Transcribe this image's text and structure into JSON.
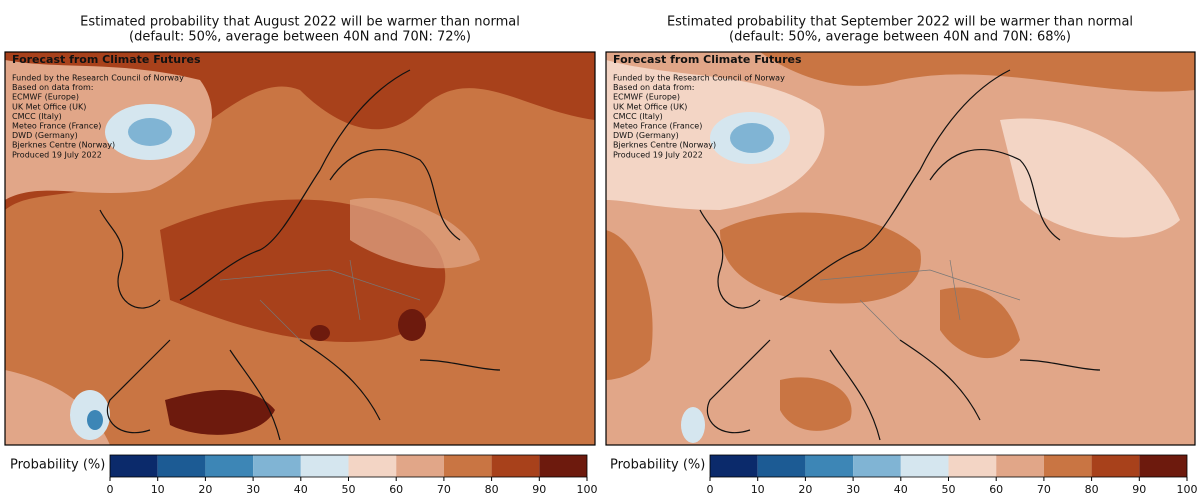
{
  "panels": [
    {
      "title": [
        "Estimated probability that August 2022 will be warmer than normal",
        "(default: 50%, average between 40N and 70N: 72%)"
      ],
      "overlay": {
        "heading": "Forecast from Climate Futures",
        "lines": [
          "Funded by the Research Council of Norway",
          "Based on data from:",
          "ECMWF (Europe)",
          "UK Met Office (UK)",
          "CMCC (Italy)",
          "Meteo France (France)",
          "DWD (Germany)",
          "Bjerknes Centre (Norway)",
          "Produced 19 July 2022"
        ]
      },
      "colorbar": {
        "label": "Probability (%)",
        "ticks": [
          0,
          10,
          20,
          30,
          40,
          50,
          60,
          70,
          80,
          90,
          100
        ],
        "colors": [
          "#0b2a6b",
          "#1c5b94",
          "#3d86b6",
          "#80b4d4",
          "#d5e6ef",
          "#f3d5c5",
          "#e1a688",
          "#c97543",
          "#a8411b",
          "#6d1a0d"
        ]
      }
    },
    {
      "title": [
        "Estimated probability that September 2022 will be warmer than normal",
        "(default: 50%, average between 40N and 70N: 68%)"
      ],
      "overlay": {
        "heading": "Forecast from Climate Futures",
        "lines": [
          "Funded by the Research Council of Norway",
          "Based on data from:",
          "ECMWF (Europe)",
          "UK Met Office (UK)",
          "CMCC (Italy)",
          "Meteo France (France)",
          "DWD (Germany)",
          "Bjerknes Centre (Norway)",
          "Produced 19 July 2022"
        ]
      },
      "colorbar": {
        "label": "Probability (%)",
        "ticks": [
          0,
          10,
          20,
          30,
          40,
          50,
          60,
          70,
          80,
          90,
          100
        ],
        "colors": [
          "#0b2a6b",
          "#1c5b94",
          "#3d86b6",
          "#80b4d4",
          "#d5e6ef",
          "#f3d5c5",
          "#e1a688",
          "#c97543",
          "#a8411b",
          "#6d1a0d"
        ]
      }
    }
  ]
}
